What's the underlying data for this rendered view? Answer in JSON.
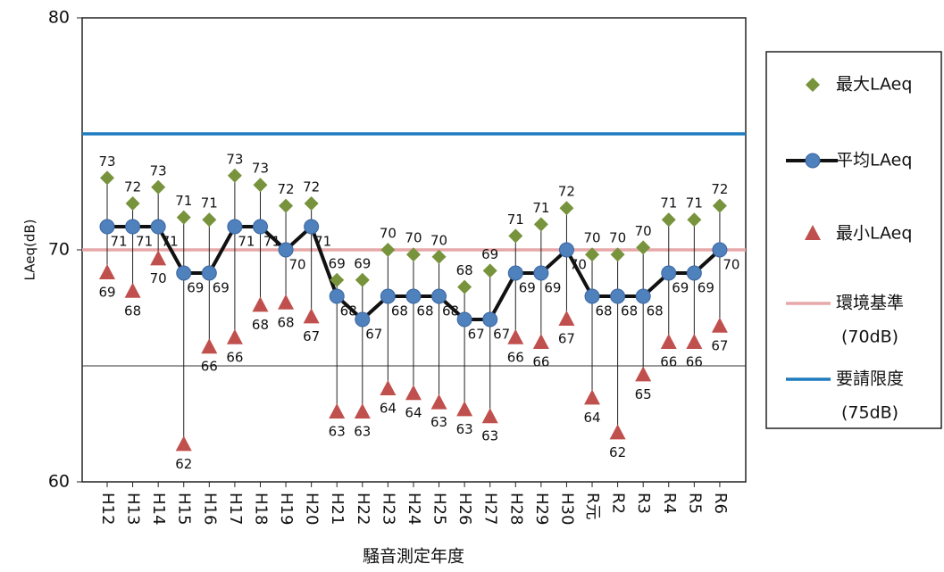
{
  "chart_data": {
    "type": "range-line",
    "y_label": "LAeq(dB)",
    "x_label": "騒音測定年度",
    "categories": [
      "H12",
      "H13",
      "H14",
      "H15",
      "H16",
      "H17",
      "H18",
      "H19",
      "H20",
      "H21",
      "H22",
      "H23",
      "H24",
      "H25",
      "H26",
      "H27",
      "H28",
      "H29",
      "H30",
      "R元",
      "R2",
      "R3",
      "R4",
      "R5",
      "R6"
    ],
    "ylim": [
      60,
      80
    ],
    "yticks": [
      60,
      70,
      80
    ],
    "series": [
      {
        "name": "最大LAeq",
        "color": "#77933c",
        "marker": "diamond",
        "values": [
          73.1,
          72.0,
          72.7,
          71.4,
          71.3,
          73.2,
          72.8,
          71.9,
          72.0,
          68.7,
          68.7,
          70.0,
          69.8,
          69.7,
          68.4,
          69.1,
          70.6,
          71.1,
          71.8,
          69.8,
          69.8,
          70.1,
          71.3,
          71.3,
          71.9
        ],
        "value_labels": [
          "73",
          "72",
          "73",
          "71",
          "71",
          "73",
          "73",
          "72",
          "72",
          "69",
          "69",
          "70",
          "70",
          "70",
          "68",
          "69",
          "71",
          "71",
          "72",
          "70",
          "70",
          "70",
          "71",
          "71",
          "72"
        ]
      },
      {
        "name": "平均LAeq",
        "color": "#4f81bd",
        "line_color": "#111111",
        "marker": "circle",
        "values": [
          71,
          71,
          71,
          69,
          69,
          71,
          71,
          70,
          71,
          68,
          67,
          68,
          68,
          68,
          67,
          67,
          69,
          69,
          70,
          68,
          68,
          68,
          69,
          69,
          70
        ]
      },
      {
        "name": "最小LAeq",
        "color": "#c0504d",
        "marker": "triangle",
        "values": [
          69.0,
          68.2,
          69.6,
          61.6,
          65.8,
          66.2,
          67.6,
          67.7,
          67.1,
          63.0,
          63.0,
          64.0,
          63.8,
          63.4,
          63.1,
          62.8,
          66.2,
          66.0,
          67.0,
          63.6,
          62.1,
          64.6,
          66.0,
          66.0,
          66.7
        ],
        "value_labels": [
          "69",
          "68",
          "70",
          "62",
          "66",
          "66",
          "68",
          "68",
          "67",
          "63",
          "63",
          "64",
          "64",
          "63",
          "63",
          "63",
          "66",
          "66",
          "67",
          "64",
          "62",
          "65",
          "66",
          "66",
          "67"
        ]
      }
    ],
    "reference_lines": [
      {
        "value": 70,
        "color": "#e6a8a8",
        "label": [
          "環境基準",
          "(70dB)"
        ]
      },
      {
        "value": 75,
        "color": "#1f7bbf",
        "label": [
          "要請限度",
          "(75dB)"
        ]
      },
      {
        "value": 65,
        "color": "#333333"
      }
    ]
  }
}
